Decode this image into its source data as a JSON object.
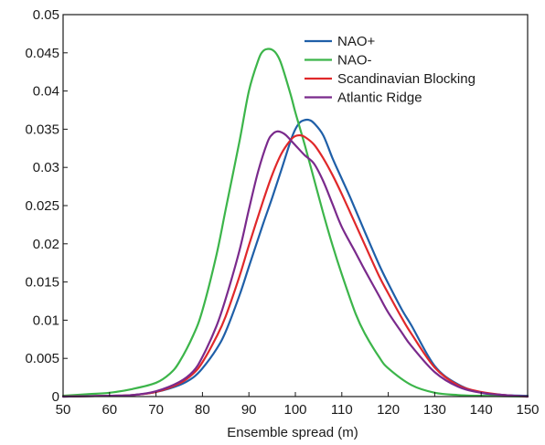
{
  "chart_data": {
    "type": "line",
    "title": "",
    "xlabel": "Ensemble spread (m)",
    "ylabel": "",
    "xlim": [
      50,
      150
    ],
    "ylim": [
      0,
      0.05
    ],
    "xticks": [
      "50",
      "60",
      "70",
      "80",
      "90",
      "100",
      "110",
      "120",
      "130",
      "140",
      "150"
    ],
    "yticks": [
      "0",
      "0.005",
      "0.01",
      "0.015",
      "0.02",
      "0.025",
      "0.03",
      "0.035",
      "0.04",
      "0.045",
      "0.05"
    ],
    "grid": false,
    "legend_position": "top-right",
    "series": [
      {
        "name": "NAO+",
        "color": "#1f5fa8",
        "x": [
          50,
          60,
          65,
          70,
          75,
          78,
          80,
          83,
          85,
          88,
          90,
          93,
          95,
          97,
          99,
          100,
          101,
          102,
          103,
          104,
          106,
          108,
          110,
          112,
          115,
          118,
          120,
          123,
          125,
          130,
          135,
          140,
          145,
          150
        ],
        "y": [
          0.0,
          0.0001,
          0.0002,
          0.0006,
          0.0015,
          0.0025,
          0.0037,
          0.0062,
          0.0085,
          0.0133,
          0.017,
          0.0225,
          0.026,
          0.0297,
          0.0335,
          0.035,
          0.0359,
          0.0362,
          0.0362,
          0.0358,
          0.0342,
          0.0312,
          0.0285,
          0.0258,
          0.0215,
          0.0173,
          0.0148,
          0.0113,
          0.0093,
          0.004,
          0.0016,
          0.0005,
          0.0002,
          0.0001
        ]
      },
      {
        "name": "NAO-",
        "color": "#3cb54a",
        "x": [
          50,
          55,
          60,
          65,
          70,
          73,
          75,
          78,
          80,
          83,
          85,
          88,
          90,
          92,
          93,
          94,
          95,
          96,
          97,
          99,
          100,
          102,
          104,
          106,
          108,
          110,
          113,
          115,
          118,
          120,
          125,
          130,
          135,
          140,
          150
        ],
        "y": [
          0.0001,
          0.0003,
          0.0005,
          0.001,
          0.0018,
          0.003,
          0.0045,
          0.008,
          0.0113,
          0.0185,
          0.0245,
          0.0335,
          0.04,
          0.044,
          0.0452,
          0.0455,
          0.0454,
          0.0448,
          0.0435,
          0.0395,
          0.0372,
          0.033,
          0.0285,
          0.024,
          0.0198,
          0.016,
          0.0108,
          0.0082,
          0.0052,
          0.0037,
          0.0015,
          0.0005,
          0.0002,
          0.0001,
          0.0
        ]
      },
      {
        "name": "Scandinavian Blocking",
        "color": "#e0282a",
        "x": [
          50,
          60,
          65,
          70,
          75,
          78,
          80,
          83,
          85,
          88,
          90,
          93,
          95,
          97,
          99,
          100,
          101,
          102,
          104,
          106,
          108,
          110,
          113,
          115,
          118,
          120,
          123,
          125,
          130,
          135,
          140,
          145,
          150
        ],
        "y": [
          0.0,
          0.0001,
          0.0002,
          0.0006,
          0.0017,
          0.003,
          0.0045,
          0.0078,
          0.0105,
          0.0158,
          0.0198,
          0.0255,
          0.029,
          0.0318,
          0.0336,
          0.0341,
          0.0342,
          0.034,
          0.033,
          0.0312,
          0.029,
          0.0265,
          0.0225,
          0.0198,
          0.0158,
          0.0135,
          0.0102,
          0.0082,
          0.0038,
          0.0015,
          0.0006,
          0.0002,
          0.0
        ]
      },
      {
        "name": "Atlantic Ridge",
        "color": "#7a2a8c",
        "x": [
          50,
          60,
          65,
          70,
          75,
          78,
          80,
          83,
          85,
          88,
          90,
          92,
          94,
          95,
          96,
          97,
          98,
          100,
          102,
          104,
          106,
          108,
          110,
          113,
          115,
          118,
          120,
          123,
          125,
          130,
          135,
          140,
          145,
          150
        ],
        "y": [
          0.0,
          0.0001,
          0.0002,
          0.0007,
          0.0019,
          0.0033,
          0.0052,
          0.0092,
          0.0128,
          0.0192,
          0.0245,
          0.0295,
          0.0333,
          0.0343,
          0.0347,
          0.0346,
          0.0342,
          0.0329,
          0.0316,
          0.0305,
          0.0282,
          0.0252,
          0.0222,
          0.0188,
          0.0165,
          0.0132,
          0.011,
          0.0083,
          0.0066,
          0.0032,
          0.0013,
          0.0005,
          0.0002,
          0.0
        ]
      }
    ]
  }
}
